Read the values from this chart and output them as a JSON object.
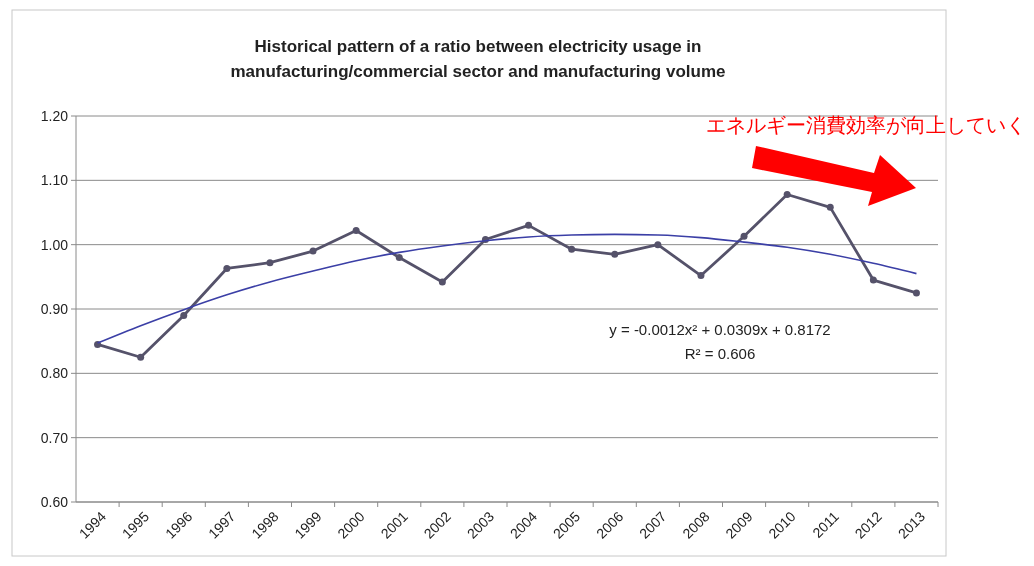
{
  "chart_data": {
    "type": "line",
    "title": "Historical pattern of a ratio between electricity usage in manufacturing/commercial sector and manufacturing volume",
    "categories": [
      "1994",
      "1995",
      "1996",
      "1997",
      "1998",
      "1999",
      "2000",
      "2001",
      "2002",
      "2003",
      "2004",
      "2005",
      "2006",
      "2007",
      "2008",
      "2009",
      "2010",
      "2011",
      "2012",
      "2013"
    ],
    "series": [
      {
        "color": "#55526a",
        "marker": "circle",
        "values": [
          0.845,
          0.825,
          0.89,
          0.963,
          0.972,
          0.99,
          1.022,
          0.98,
          0.942,
          1.008,
          1.03,
          0.993,
          0.985,
          1.0,
          0.952,
          1.013,
          1.078,
          1.058,
          0.945,
          0.925
        ]
      },
      {
        "color": "#3b3fa6",
        "marker": "none",
        "values": [
          0.847,
          0.874,
          0.899,
          0.922,
          0.942,
          0.959,
          0.975,
          0.988,
          0.998,
          1.006,
          1.012,
          1.015,
          1.016,
          1.015,
          1.011,
          1.004,
          0.996,
          0.985,
          0.971,
          0.955
        ]
      }
    ],
    "ylim": [
      0.6,
      1.2
    ],
    "yticks": [
      {
        "value": 0.6,
        "label": "0.60"
      },
      {
        "value": 0.7,
        "label": "0.70"
      },
      {
        "value": 0.8,
        "label": "0.80"
      },
      {
        "value": 0.9,
        "label": "0.90"
      },
      {
        "value": 1.0,
        "label": "1.00"
      },
      {
        "value": 1.1,
        "label": "1.10"
      },
      {
        "value": 1.2,
        "label": "1.20"
      }
    ],
    "grid": "y",
    "annotations": [
      "y = -0.0012x² + 0.0309x + 0.8172",
      "R² = 0.606",
      "エネルギー消費効率が向上していく"
    ]
  }
}
